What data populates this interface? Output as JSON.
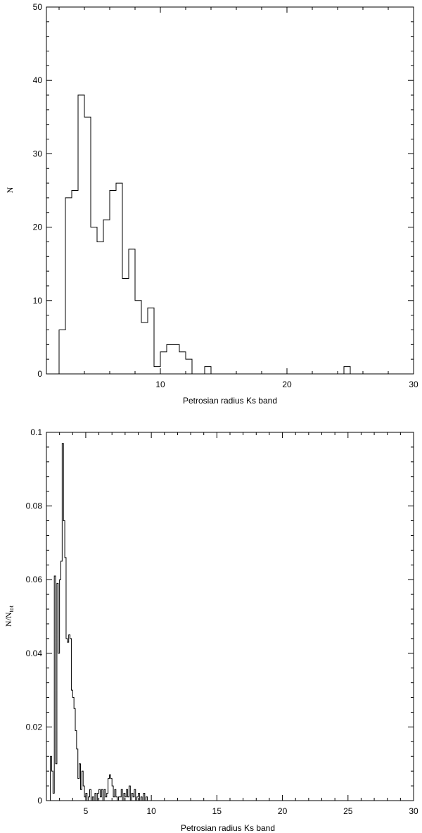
{
  "chart_data": [
    {
      "type": "histogram",
      "xlabel": "Petrosian radius Ks band",
      "ylabel": "N",
      "xlim": [
        1,
        30
      ],
      "ylim": [
        0,
        50
      ],
      "x_ticks": [
        10,
        20,
        30
      ],
      "y_ticks": [
        0,
        10,
        20,
        30,
        40,
        50
      ],
      "grid": false,
      "legend": "none",
      "bin_width": 0.5,
      "bins": [
        {
          "x": 2.25,
          "value": 6
        },
        {
          "x": 2.75,
          "value": 24
        },
        {
          "x": 3.25,
          "value": 25
        },
        {
          "x": 3.75,
          "value": 38
        },
        {
          "x": 4.25,
          "value": 35
        },
        {
          "x": 4.75,
          "value": 20
        },
        {
          "x": 5.25,
          "value": 18
        },
        {
          "x": 5.75,
          "value": 21
        },
        {
          "x": 6.25,
          "value": 25
        },
        {
          "x": 6.75,
          "value": 26
        },
        {
          "x": 7.25,
          "value": 13
        },
        {
          "x": 7.75,
          "value": 17
        },
        {
          "x": 8.25,
          "value": 10
        },
        {
          "x": 8.75,
          "value": 7
        },
        {
          "x": 9.25,
          "value": 9
        },
        {
          "x": 9.75,
          "value": 1
        },
        {
          "x": 10.25,
          "value": 3
        },
        {
          "x": 10.75,
          "value": 4
        },
        {
          "x": 11.25,
          "value": 4
        },
        {
          "x": 11.75,
          "value": 3
        },
        {
          "x": 12.25,
          "value": 2
        },
        {
          "x": 12.75,
          "value": 0
        },
        {
          "x": 13.25,
          "value": 0
        },
        {
          "x": 13.75,
          "value": 1
        },
        {
          "x": 24.75,
          "value": 1
        }
      ]
    },
    {
      "type": "histogram",
      "xlabel": "Petrosian radius Ks band",
      "ylabel": "N/N",
      "ylabel_sub": "tot",
      "xlim": [
        2,
        30
      ],
      "ylim": [
        0,
        0.1
      ],
      "x_ticks": [
        5,
        10,
        15,
        20,
        25,
        30
      ],
      "y_ticks": [
        0,
        0.02,
        0.04,
        0.06,
        0.08,
        0.1
      ],
      "grid": false,
      "legend": "none",
      "bin_width": 0.1,
      "bins": [
        {
          "x": 2.35,
          "value": 0.012
        },
        {
          "x": 2.45,
          "value": 0.008
        },
        {
          "x": 2.55,
          "value": 0.002
        },
        {
          "x": 2.65,
          "value": 0.061
        },
        {
          "x": 2.75,
          "value": 0.01
        },
        {
          "x": 2.85,
          "value": 0.059
        },
        {
          "x": 2.95,
          "value": 0.04
        },
        {
          "x": 3.05,
          "value": 0.06
        },
        {
          "x": 3.15,
          "value": 0.065
        },
        {
          "x": 3.25,
          "value": 0.097
        },
        {
          "x": 3.35,
          "value": 0.076
        },
        {
          "x": 3.45,
          "value": 0.066
        },
        {
          "x": 3.55,
          "value": 0.044
        },
        {
          "x": 3.65,
          "value": 0.043
        },
        {
          "x": 3.75,
          "value": 0.045
        },
        {
          "x": 3.85,
          "value": 0.044
        },
        {
          "x": 3.95,
          "value": 0.03
        },
        {
          "x": 4.05,
          "value": 0.028
        },
        {
          "x": 4.15,
          "value": 0.025
        },
        {
          "x": 4.25,
          "value": 0.019
        },
        {
          "x": 4.35,
          "value": 0.014
        },
        {
          "x": 4.45,
          "value": 0.006
        },
        {
          "x": 4.55,
          "value": 0.01
        },
        {
          "x": 4.65,
          "value": 0.003
        },
        {
          "x": 4.75,
          "value": 0.008
        },
        {
          "x": 4.85,
          "value": 0.004
        },
        {
          "x": 4.95,
          "value": 0.001
        },
        {
          "x": 5.05,
          "value": 0.002
        },
        {
          "x": 5.15,
          "value": 0.0
        },
        {
          "x": 5.25,
          "value": 0.001
        },
        {
          "x": 5.35,
          "value": 0.003
        },
        {
          "x": 5.45,
          "value": 0.0
        },
        {
          "x": 5.55,
          "value": 0.001
        },
        {
          "x": 5.65,
          "value": 0.0
        },
        {
          "x": 5.75,
          "value": 0.002
        },
        {
          "x": 5.85,
          "value": 0.0
        },
        {
          "x": 5.95,
          "value": 0.002
        },
        {
          "x": 6.05,
          "value": 0.003
        },
        {
          "x": 6.15,
          "value": 0.001
        },
        {
          "x": 6.25,
          "value": 0.003
        },
        {
          "x": 6.35,
          "value": 0.0
        },
        {
          "x": 6.45,
          "value": 0.003
        },
        {
          "x": 6.55,
          "value": 0.001
        },
        {
          "x": 6.65,
          "value": 0.002
        },
        {
          "x": 6.75,
          "value": 0.006
        },
        {
          "x": 6.85,
          "value": 0.007
        },
        {
          "x": 6.95,
          "value": 0.006
        },
        {
          "x": 7.05,
          "value": 0.004
        },
        {
          "x": 7.15,
          "value": 0.001
        },
        {
          "x": 7.25,
          "value": 0.003
        },
        {
          "x": 7.35,
          "value": 0.001
        },
        {
          "x": 7.45,
          "value": 0.0
        },
        {
          "x": 7.55,
          "value": 0.001
        },
        {
          "x": 7.65,
          "value": 0.001
        },
        {
          "x": 7.75,
          "value": 0.003
        },
        {
          "x": 7.85,
          "value": 0.0
        },
        {
          "x": 7.95,
          "value": 0.002
        },
        {
          "x": 8.05,
          "value": 0.001
        },
        {
          "x": 8.15,
          "value": 0.003
        },
        {
          "x": 8.25,
          "value": 0.001
        },
        {
          "x": 8.35,
          "value": 0.004
        },
        {
          "x": 8.45,
          "value": 0.0
        },
        {
          "x": 8.55,
          "value": 0.002
        },
        {
          "x": 8.65,
          "value": 0.001
        },
        {
          "x": 8.75,
          "value": 0.003
        },
        {
          "x": 8.85,
          "value": 0.0
        },
        {
          "x": 8.95,
          "value": 0.001
        },
        {
          "x": 9.05,
          "value": 0.002
        },
        {
          "x": 9.15,
          "value": 0.0
        },
        {
          "x": 9.25,
          "value": 0.001
        },
        {
          "x": 9.35,
          "value": 0.0
        },
        {
          "x": 9.45,
          "value": 0.002
        },
        {
          "x": 9.55,
          "value": 0.0
        },
        {
          "x": 9.65,
          "value": 0.001
        },
        {
          "x": 9.75,
          "value": 0.0
        }
      ]
    }
  ]
}
